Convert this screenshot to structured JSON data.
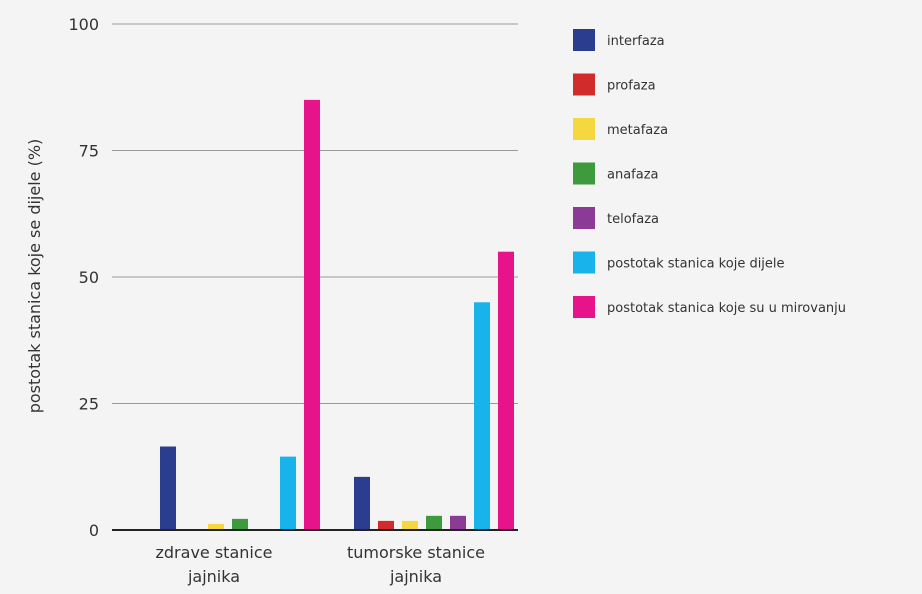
{
  "chart_data": {
    "type": "bar",
    "categories": [
      [
        "zdrave stanice",
        "jajnika"
      ],
      [
        "tumorske stanice",
        "jajnika"
      ]
    ],
    "series": [
      {
        "name": "interfaza",
        "color": "#2a3d8f",
        "values": [
          16.5,
          10.5
        ]
      },
      {
        "name": "profaza",
        "color": "#d22b2b",
        "values": [
          0,
          1.8
        ]
      },
      {
        "name": "metafaza",
        "color": "#f5d840",
        "values": [
          1.2,
          1.8
        ]
      },
      {
        "name": "anafaza",
        "color": "#3d9b3d",
        "values": [
          2.2,
          2.8
        ]
      },
      {
        "name": "telofaza",
        "color": "#8b3a96",
        "values": [
          0,
          2.8
        ]
      },
      {
        "name": "postotak stanica koje dijele",
        "color": "#17b3ea",
        "values": [
          14.5,
          45
        ]
      },
      {
        "name": "postotak stanica koje su u mirovanju",
        "color": "#e6138a",
        "values": [
          85,
          55
        ]
      }
    ],
    "ylabel": "postotak stanica koje se dijele (%)",
    "xlabel": "",
    "ylim": [
      0,
      100
    ],
    "yticks": [
      0,
      25,
      50,
      75,
      100
    ],
    "grid": true,
    "legend": "right"
  }
}
